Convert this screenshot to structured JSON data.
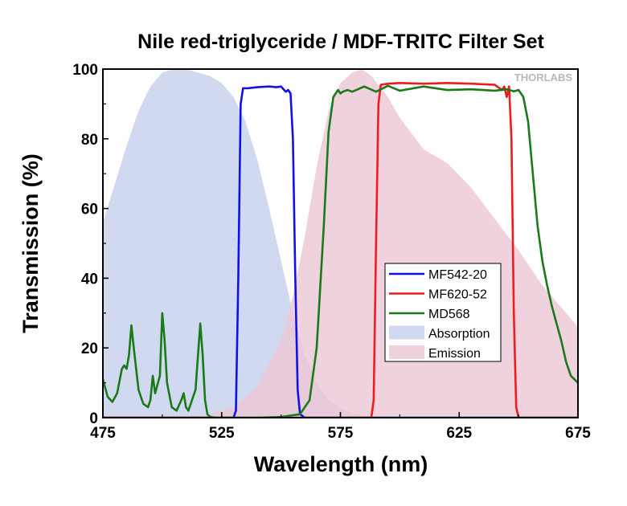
{
  "watermark": "THORLABS",
  "chart_data": {
    "type": "area",
    "title": "Nile red-triglyceride / MDF-TRITC Filter Set",
    "xlabel": "Wavelength (nm)",
    "ylabel": "Transmission (%)",
    "xlim": [
      475,
      675
    ],
    "ylim": [
      0,
      100
    ],
    "xticks": [
      475,
      525,
      575,
      625,
      675
    ],
    "yticks": [
      0,
      20,
      40,
      60,
      80,
      100
    ],
    "grid": false,
    "legend_position": "lower-right",
    "series": [
      {
        "name": "MF542-20",
        "kind": "line",
        "color": "#1010e8",
        "x": [
          475,
          530,
          531,
          532,
          533,
          534,
          536,
          540,
          545,
          548,
          550,
          552,
          553,
          554,
          555,
          556,
          557,
          558,
          560,
          675
        ],
        "y": [
          0,
          0,
          2,
          40,
          90,
          94.5,
          94.5,
          94.8,
          95,
          94.8,
          95,
          93.5,
          94,
          93,
          80,
          40,
          8,
          1,
          0,
          0
        ]
      },
      {
        "name": "MF620-52",
        "kind": "line",
        "color": "#ee1c1c",
        "x": [
          475,
          588,
          589,
          590,
          591,
          592,
          595,
          600,
          610,
          620,
          630,
          640,
          643,
          644,
          645,
          646,
          647,
          648,
          649,
          650,
          675
        ],
        "y": [
          0,
          0,
          5,
          50,
          90,
          95.5,
          95.8,
          96,
          95.8,
          96,
          95.8,
          95.5,
          94,
          95,
          92,
          95,
          80,
          30,
          3,
          0,
          0
        ]
      },
      {
        "name": "MD568",
        "kind": "line",
        "color": "#1a7a1a",
        "x": [
          475,
          477,
          479,
          481,
          483,
          484,
          485,
          486,
          487,
          488,
          490,
          492,
          494,
          495,
          496,
          497,
          499,
          500,
          501,
          502,
          504,
          506,
          508,
          509,
          510,
          511,
          512,
          514,
          516,
          517,
          518,
          519,
          520,
          522,
          525,
          530,
          540,
          550,
          558,
          562,
          565,
          568,
          570,
          572,
          574,
          575,
          576,
          578,
          580,
          585,
          590,
          595,
          600,
          610,
          620,
          630,
          640,
          645,
          648,
          650,
          652,
          654,
          656,
          658,
          660,
          662,
          664,
          666,
          668,
          670,
          672,
          675
        ],
        "y": [
          11,
          6,
          4.5,
          7,
          14,
          15,
          14,
          18,
          26.5,
          20,
          8,
          4,
          3,
          5,
          12,
          7,
          12,
          30,
          22,
          10,
          3,
          2,
          5,
          7,
          3,
          2,
          4,
          8,
          27,
          18,
          5,
          1,
          0.3,
          0,
          0,
          0,
          0,
          0.2,
          1,
          5,
          20,
          55,
          82,
          92,
          94,
          93,
          93.5,
          94,
          93.5,
          95,
          93.5,
          95.2,
          93.8,
          95,
          94,
          94.2,
          93.8,
          94.2,
          93.6,
          94,
          92,
          85,
          70,
          55,
          45,
          38,
          32,
          27,
          22,
          16,
          12,
          10
        ]
      },
      {
        "name": "Absorption",
        "kind": "area",
        "color": "#c5d0ec",
        "x": [
          475,
          480,
          485,
          490,
          495,
          500,
          505,
          510,
          515,
          520,
          525,
          530,
          535,
          540,
          545,
          550,
          555,
          560,
          565,
          570,
          575,
          580,
          585,
          590,
          595,
          600
        ],
        "y": [
          56,
          67,
          78,
          88,
          95,
          99,
          100,
          100,
          99,
          98,
          96,
          92,
          85,
          74,
          60,
          45,
          30,
          18,
          10,
          5,
          2.5,
          1.2,
          0.6,
          0.3,
          0.1,
          0
        ]
      },
      {
        "name": "Emission",
        "kind": "area",
        "color": "#ecc7d6",
        "x": [
          510,
          520,
          530,
          540,
          550,
          555,
          560,
          565,
          570,
          575,
          580,
          584,
          588,
          595,
          600,
          610,
          620,
          630,
          640,
          650,
          660,
          670,
          675
        ],
        "y": [
          0,
          1,
          3,
          9,
          22,
          35,
          52,
          72,
          88,
          96,
          99,
          100,
          98,
          92,
          86,
          77,
          73,
          66,
          57,
          48,
          38,
          30,
          26
        ]
      }
    ]
  }
}
